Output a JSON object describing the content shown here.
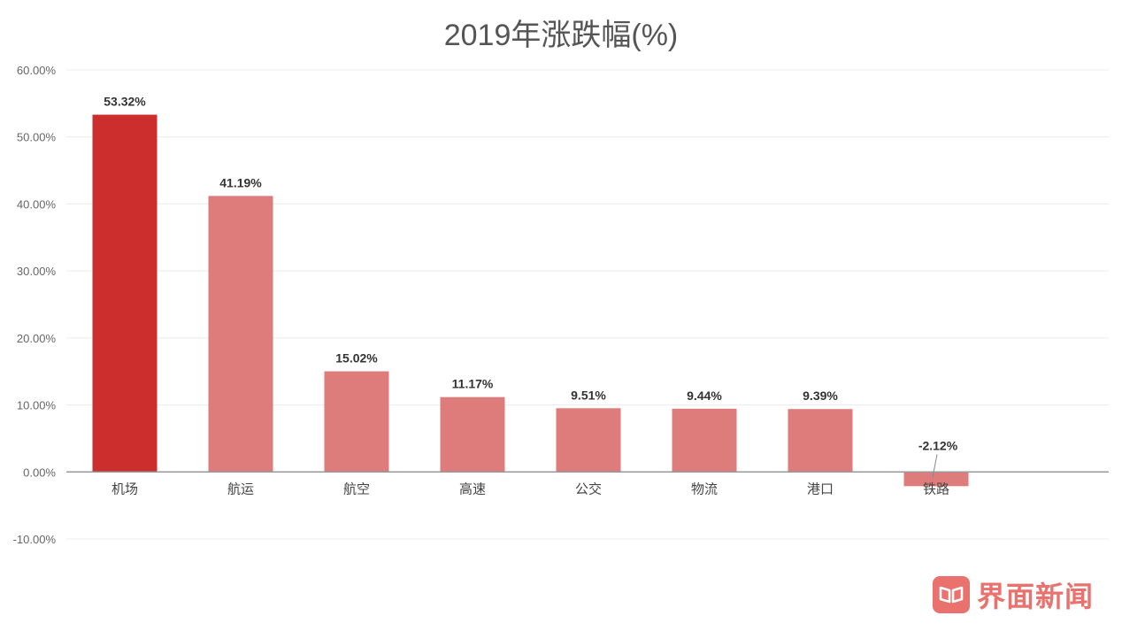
{
  "chart_data": {
    "type": "bar",
    "title": "2019年涨跌幅(%)",
    "categories": [
      "机场",
      "航运",
      "航空",
      "高速",
      "公交",
      "物流",
      "港口",
      "铁路"
    ],
    "values": [
      53.32,
      41.19,
      15.02,
      11.17,
      9.51,
      9.44,
      9.39,
      -2.12
    ],
    "value_labels": [
      "53.32%",
      "41.19%",
      "15.02%",
      "11.17%",
      "9.51%",
      "9.44%",
      "9.39%",
      "-2.12%"
    ],
    "yticks": [
      60,
      50,
      40,
      30,
      20,
      10,
      0,
      -10
    ],
    "ytick_labels": [
      "60.00%",
      "50.00%",
      "40.00%",
      "30.00%",
      "20.00%",
      "10.00%",
      "0.00%",
      "-10.00%"
    ],
    "ylim": [
      -10,
      60
    ],
    "grid": true,
    "legend": "none",
    "colors": {
      "highlight": "#cc2e2e",
      "bar": "#de7b7b",
      "grid": "#ececec",
      "axis": "#999999",
      "label": "#333333",
      "tick": "#666666",
      "title": "#555555"
    },
    "highlight_index": 0
  },
  "watermark": {
    "text": "界面新闻",
    "icon": "jiemian-logo-icon"
  }
}
